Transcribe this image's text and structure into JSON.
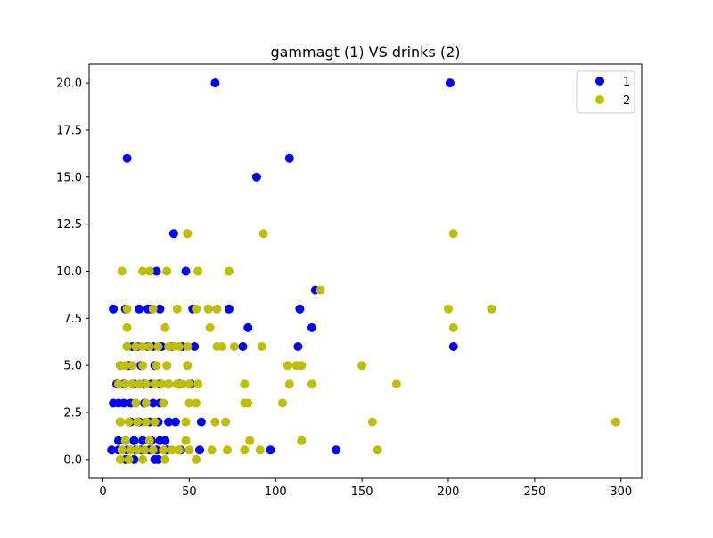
{
  "chart_data": {
    "type": "scatter",
    "title": "gammagt (1) VS drinks (2)",
    "xlabel": "",
    "ylabel": "",
    "xlim": [
      -8,
      312
    ],
    "ylim": [
      -1.0,
      21.0
    ],
    "xticks": [
      0,
      50,
      100,
      150,
      200,
      250,
      300
    ],
    "xtick_labels": [
      "0",
      "50",
      "100",
      "150",
      "200",
      "250",
      "300"
    ],
    "yticks": [
      0,
      2.5,
      5,
      7.5,
      10,
      12.5,
      15,
      17.5,
      20
    ],
    "ytick_labels": [
      "0.0",
      "2.5",
      "5.0",
      "7.5",
      "10.0",
      "12.5",
      "15.0",
      "17.5",
      "20.0"
    ],
    "grid": false,
    "legend": {
      "position": "top-right"
    },
    "series": [
      {
        "name": "1",
        "color": "#0000ff",
        "points": [
          [
            65,
            20
          ],
          [
            201,
            20
          ],
          [
            14,
            16
          ],
          [
            108,
            16
          ],
          [
            89,
            15
          ],
          [
            41,
            12
          ],
          [
            31,
            10
          ],
          [
            48,
            10
          ],
          [
            123,
            9
          ],
          [
            6,
            8
          ],
          [
            13,
            8
          ],
          [
            21,
            8
          ],
          [
            26,
            8
          ],
          [
            28,
            8
          ],
          [
            33,
            8
          ],
          [
            52,
            8
          ],
          [
            73,
            8
          ],
          [
            114,
            8
          ],
          [
            84,
            7
          ],
          [
            121,
            7
          ],
          [
            14,
            6
          ],
          [
            17,
            6
          ],
          [
            20,
            6
          ],
          [
            26,
            6
          ],
          [
            29,
            6
          ],
          [
            34,
            6
          ],
          [
            40,
            6
          ],
          [
            46,
            6
          ],
          [
            53,
            6
          ],
          [
            81,
            6
          ],
          [
            113,
            6
          ],
          [
            203,
            6
          ],
          [
            10,
            5
          ],
          [
            15,
            5
          ],
          [
            22,
            5
          ],
          [
            30,
            5
          ],
          [
            8,
            4
          ],
          [
            12,
            4
          ],
          [
            18,
            4
          ],
          [
            24,
            4
          ],
          [
            28,
            4
          ],
          [
            33,
            4
          ],
          [
            38,
            4
          ],
          [
            44,
            4
          ],
          [
            51,
            4
          ],
          [
            6,
            3
          ],
          [
            9,
            3
          ],
          [
            12,
            3
          ],
          [
            16,
            3
          ],
          [
            19,
            3
          ],
          [
            24,
            3
          ],
          [
            29,
            3
          ],
          [
            33,
            3
          ],
          [
            10,
            2
          ],
          [
            16,
            2
          ],
          [
            21,
            2
          ],
          [
            27,
            2
          ],
          [
            32,
            2
          ],
          [
            38,
            2
          ],
          [
            42,
            2
          ],
          [
            57,
            2
          ],
          [
            9,
            1
          ],
          [
            13,
            1
          ],
          [
            18,
            1
          ],
          [
            23,
            1
          ],
          [
            28,
            1
          ],
          [
            33,
            1
          ],
          [
            36,
            1
          ],
          [
            5,
            0.5
          ],
          [
            9,
            0.5
          ],
          [
            14,
            0.5
          ],
          [
            19,
            0.5
          ],
          [
            22,
            0.5
          ],
          [
            27,
            0.5
          ],
          [
            31,
            0.5
          ],
          [
            37,
            0.5
          ],
          [
            45,
            0.5
          ],
          [
            56,
            0.5
          ],
          [
            97,
            0.5
          ],
          [
            135,
            0.5
          ],
          [
            13,
            0
          ],
          [
            18,
            0
          ],
          [
            30,
            0
          ],
          [
            32,
            0
          ]
        ]
      },
      {
        "name": "2",
        "color": "#bfbf00",
        "points": [
          [
            49,
            12
          ],
          [
            93,
            12
          ],
          [
            203,
            12
          ],
          [
            11,
            10
          ],
          [
            23,
            10
          ],
          [
            27,
            10
          ],
          [
            37,
            10
          ],
          [
            55,
            10
          ],
          [
            73,
            10
          ],
          [
            126,
            9
          ],
          [
            14,
            8
          ],
          [
            29,
            8
          ],
          [
            43,
            8
          ],
          [
            54,
            8
          ],
          [
            61,
            8
          ],
          [
            66,
            8
          ],
          [
            200,
            8
          ],
          [
            225,
            8
          ],
          [
            14,
            7
          ],
          [
            36,
            7
          ],
          [
            62,
            7
          ],
          [
            203,
            7
          ],
          [
            14,
            6
          ],
          [
            19,
            6
          ],
          [
            23,
            6
          ],
          [
            27,
            6
          ],
          [
            32,
            6
          ],
          [
            38,
            6
          ],
          [
            41,
            6
          ],
          [
            44,
            6
          ],
          [
            49,
            6
          ],
          [
            66,
            6
          ],
          [
            69,
            6
          ],
          [
            76,
            6
          ],
          [
            92,
            6
          ],
          [
            10,
            5
          ],
          [
            13,
            5
          ],
          [
            17,
            5
          ],
          [
            23,
            5
          ],
          [
            31,
            5
          ],
          [
            37,
            5
          ],
          [
            49,
            5
          ],
          [
            107,
            5
          ],
          [
            112,
            5
          ],
          [
            115,
            5
          ],
          [
            150,
            5
          ],
          [
            9,
            4
          ],
          [
            13,
            4
          ],
          [
            17,
            4
          ],
          [
            21,
            4
          ],
          [
            25,
            4
          ],
          [
            30,
            4
          ],
          [
            34,
            4
          ],
          [
            38,
            4
          ],
          [
            43,
            4
          ],
          [
            46,
            4
          ],
          [
            50,
            4
          ],
          [
            55,
            4
          ],
          [
            82,
            4
          ],
          [
            108,
            4
          ],
          [
            121,
            4
          ],
          [
            170,
            4
          ],
          [
            19,
            3
          ],
          [
            25,
            3
          ],
          [
            35,
            3
          ],
          [
            50,
            3
          ],
          [
            54,
            3
          ],
          [
            82,
            3
          ],
          [
            84,
            3
          ],
          [
            104,
            3
          ],
          [
            10,
            2
          ],
          [
            15,
            2
          ],
          [
            20,
            2
          ],
          [
            25,
            2
          ],
          [
            30,
            2
          ],
          [
            48,
            2
          ],
          [
            65,
            2
          ],
          [
            71,
            2
          ],
          [
            156,
            2
          ],
          [
            297,
            2
          ],
          [
            13,
            1
          ],
          [
            27,
            1
          ],
          [
            48,
            1
          ],
          [
            85,
            1
          ],
          [
            115,
            1
          ],
          [
            11,
            0.5
          ],
          [
            16,
            0.5
          ],
          [
            20,
            0.5
          ],
          [
            24,
            0.5
          ],
          [
            29,
            0.5
          ],
          [
            35,
            0.5
          ],
          [
            40,
            0.5
          ],
          [
            44,
            0.5
          ],
          [
            50,
            0.5
          ],
          [
            63,
            0.5
          ],
          [
            72,
            0.5
          ],
          [
            82,
            0.5
          ],
          [
            91,
            0.5
          ],
          [
            159,
            0.5
          ],
          [
            10,
            0
          ],
          [
            15,
            0
          ],
          [
            23,
            0
          ],
          [
            36,
            0
          ],
          [
            54,
            0
          ]
        ]
      }
    ]
  }
}
